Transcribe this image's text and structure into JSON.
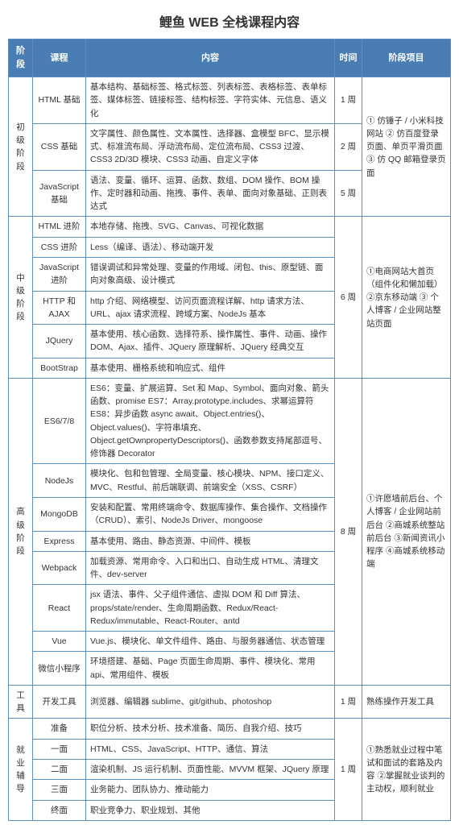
{
  "title": "鲤鱼 WEB 全栈课程内容",
  "headers": {
    "stage": "阶段",
    "course": "课程",
    "content": "内容",
    "time": "时间",
    "project": "阶段项目"
  },
  "s1": {
    "stage": "初级阶段",
    "proj": "① 仿锤子 / 小米科技网站\n② 仿百度登录页面、单页平滑页面\n③ 仿 QQ 邮箱登录页面",
    "r1": {
      "course": "HTML 基础",
      "content": "基本结构、基础标签、格式标签、列表标签、表格标签、表单标签、媒体标签、链接标签、结构标签、字符实体、元信息、语义化",
      "time": "1 周"
    },
    "r2": {
      "course": "CSS 基础",
      "content": "文字属性、颜色属性、文本属性、选择器、盒模型 BFC、显示模式、标准流布局、浮动流布局、定位流布局、CSS3 过渡、CSS3 2D/3D 模块、CSS3 动画、自定义字体",
      "time": "2 周"
    },
    "r3": {
      "course": "JavaScript 基础",
      "content": "语法、变量、循环、运算、函数、数组、DOM 操作、BOM 操作、定时器和动画、拖拽、事件、表单、面向对象基础、正则表达式",
      "time": "5 周"
    }
  },
  "s2": {
    "stage": "中级阶段",
    "time": "6 周",
    "proj": "①电商网站大首页（组件化和懒加载）\n②京东移动端\n③ 个人博客 / 企业网站整站页面",
    "r1": {
      "course": "HTML 进阶",
      "content": "本地存储、拖拽、SVG、Canvas、可视化数据"
    },
    "r2": {
      "course": "CSS 进阶",
      "content": "Less（编译、语法）、移动端开发"
    },
    "r3": {
      "course": "JavaScript 进阶",
      "content": "错误调试和异常处理、变量的作用域、闭包、this、原型链、面向对象高级、设计模式"
    },
    "r4": {
      "course": "HTTP 和 AJAX",
      "content": "http 介绍、网络模型、访问页面流程详解、http 请求方法、URL、ajax 请求流程、跨域方案、NodeJs 基本"
    },
    "r5": {
      "course": "JQuery",
      "content": "基本使用、核心函数、选择符系、操作属性、事件、动画、操作 DOM、Ajax、插件、JQuery 原理解析、JQuery 经典交互"
    },
    "r6": {
      "course": "BootStrap",
      "content": "基本使用、栅格系统和响应式、组件"
    }
  },
  "s3": {
    "stage": "高级阶段",
    "time": "8 周",
    "proj": "①许愿墙前后台、个人博客 / 企业网站前后台\n②商城系统整站前后台\n③新闻资讯小程序\n④商城系统移动端",
    "r1": {
      "course": "ES6/7/8",
      "content": "ES6：变量、扩展运算、Set 和 Map、Symbol、面向对象、箭头函数、promise\nES7：Array.prototype.includes、求幂运算符\nES8：异步函数 async await、Object.entries()、Object.values()、字符串填充、Object.getOwnpropertyDescriptors()、函数参数支持尾部逗号、修饰器 Decorator"
    },
    "r2": {
      "course": "NodeJs",
      "content": "模块化、包和包管理、全局变量、核心模块、NPM、接口定义、MVC、Restful、前后端联调、前端安全（XSS、CSRF）"
    },
    "r3": {
      "course": "MongoDB",
      "content": "安装和配置、常用终端命令、数据库操作、集合操作、文档操作（CRUD）、索引、NodeJs Driver、mongoose"
    },
    "r4": {
      "course": "Express",
      "content": "基本使用、路由、静态资源、中间件、模板"
    },
    "r5": {
      "course": "Webpack",
      "content": "加载资源、常用命令、入口和出口、自动生成 HTML、清理文件、dev-server"
    },
    "r6": {
      "course": "React",
      "content": "jsx 语法、事件、父子组件通信、虚拟 DOM 和 Diff 算法、props/state/render、生命周期函数、Redux/React-Redux/immutable、React-Router、antd"
    },
    "r7": {
      "course": "Vue",
      "content": "Vue.js、模块化、单文件组件、路由、与服务器通信、状态管理"
    },
    "r8": {
      "course": "微信小程序",
      "content": "环境搭建、基础、Page 页面生命周期、事件、模块化、常用 api、常用组件、模板"
    }
  },
  "s4": {
    "stage": "工具",
    "r1": {
      "course": "开发工具",
      "content": "浏览器、编辑器 sublime、git/github、photoshop",
      "time": "1 周",
      "proj": "熟练操作开发工具"
    }
  },
  "s5": {
    "stage": "就业辅导",
    "time": "1 周",
    "proj": "①熟悉就业过程中笔试和面试的套路及内容\n②掌握就业谈判的主动权，顺利就业",
    "r1": {
      "course": "准备",
      "content": "职位分析、技术分析、技术准备、简历、自我介绍、技巧"
    },
    "r2": {
      "course": "一面",
      "content": "HTML、CSS、JavaScript、HTTP、通信、算法"
    },
    "r3": {
      "course": "二面",
      "content": "渲染机制、JS 运行机制、页面性能、MVVM 框架、JQuery 原理"
    },
    "r4": {
      "course": "三面",
      "content": "业务能力、团队协力、推动能力"
    },
    "r5": {
      "course": "终面",
      "content": "职业竞争力、职业规划、其他"
    }
  }
}
